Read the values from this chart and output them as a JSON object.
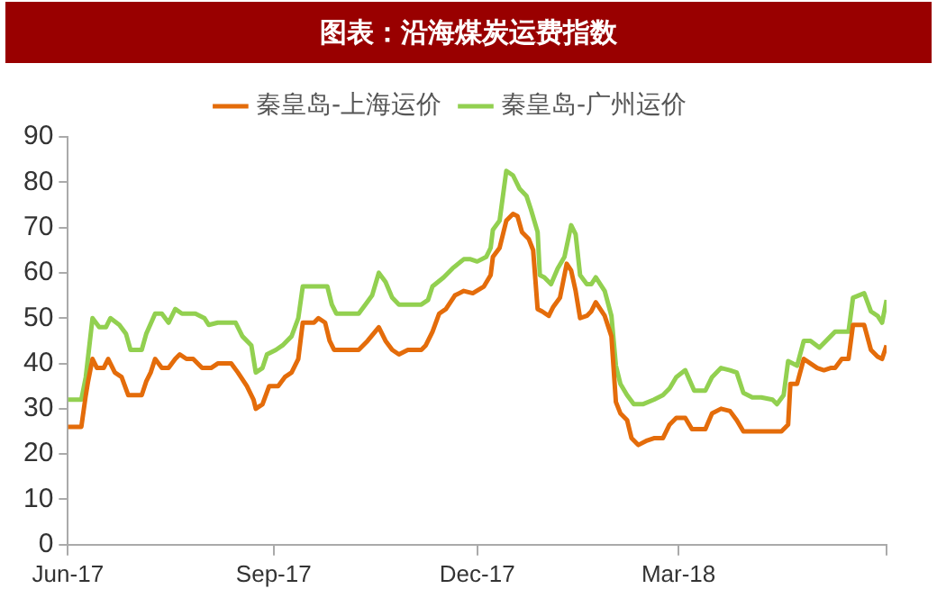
{
  "chart_data": {
    "type": "line",
    "title": "图表：沿海煤炭运费指数",
    "legend": "top",
    "grid": false,
    "marker": "none",
    "line_style": "solid",
    "xlim": [
      "2017-06-01",
      "2018-06-02"
    ],
    "xticks": [
      {
        "value": "2017-06-01",
        "label": "Jun-17"
      },
      {
        "value": "2017-09-01",
        "label": "Sep-17"
      },
      {
        "value": "2017-12-01",
        "label": "Dec-17"
      },
      {
        "value": "2018-03-01",
        "label": "Mar-18"
      },
      {
        "value": "2018-06-02",
        "label": null
      }
    ],
    "ylim": [
      0,
      90
    ],
    "yticks": [
      0,
      10,
      20,
      30,
      40,
      50,
      60,
      70,
      80,
      90
    ],
    "series": [
      {
        "name": "秦皇岛-上海运价",
        "color": "#e46c0a",
        "x": [
          "2017-06-01",
          "2017-06-07",
          "2017-06-09",
          "2017-06-10",
          "2017-06-12",
          "2017-06-14",
          "2017-06-17",
          "2017-06-19",
          "2017-06-22",
          "2017-06-25",
          "2017-06-28",
          "2017-07-04",
          "2017-07-06",
          "2017-07-08",
          "2017-07-10",
          "2017-07-13",
          "2017-07-16",
          "2017-07-19",
          "2017-07-21",
          "2017-07-24",
          "2017-07-27",
          "2017-07-31",
          "2017-08-04",
          "2017-08-07",
          "2017-08-13",
          "2017-08-16",
          "2017-08-20",
          "2017-08-23",
          "2017-08-24",
          "2017-08-27",
          "2017-08-30",
          "2017-09-03",
          "2017-09-06",
          "2017-09-09",
          "2017-09-12",
          "2017-09-14",
          "2017-09-19",
          "2017-09-21",
          "2017-09-24",
          "2017-09-26",
          "2017-09-28",
          "2017-10-09",
          "2017-10-13",
          "2017-10-18",
          "2017-10-21",
          "2017-10-24",
          "2017-10-27",
          "2017-10-31",
          "2017-11-06",
          "2017-11-08",
          "2017-11-11",
          "2017-11-14",
          "2017-11-17",
          "2017-11-21",
          "2017-11-25",
          "2017-11-29",
          "2017-12-04",
          "2017-12-07",
          "2017-12-08",
          "2017-12-11",
          "2017-12-14",
          "2017-12-17",
          "2017-12-19",
          "2017-12-21",
          "2017-12-24",
          "2017-12-26",
          "2017-12-28",
          "2017-12-30",
          "2018-01-02",
          "2018-01-04",
          "2018-01-07",
          "2018-01-10",
          "2018-01-12",
          "2018-01-14",
          "2018-01-16",
          "2018-01-19",
          "2018-01-21",
          "2018-01-23",
          "2018-01-27",
          "2018-01-30",
          "2018-02-01",
          "2018-02-03",
          "2018-02-06",
          "2018-02-08",
          "2018-02-11",
          "2018-02-15",
          "2018-02-18",
          "2018-02-22",
          "2018-02-25",
          "2018-02-28",
          "2018-03-04",
          "2018-03-07",
          "2018-03-13",
          "2018-03-16",
          "2018-03-20",
          "2018-03-24",
          "2018-03-27",
          "2018-03-30",
          "2018-04-16",
          "2018-04-19",
          "2018-04-20",
          "2018-04-23",
          "2018-04-26",
          "2018-04-29",
          "2018-05-02",
          "2018-05-05",
          "2018-05-08",
          "2018-05-10",
          "2018-05-13",
          "2018-05-16",
          "2018-05-18",
          "2018-05-23",
          "2018-05-26",
          "2018-05-29",
          "2018-05-31",
          "2018-06-01",
          "2018-06-02"
        ],
        "values": [
          26,
          26,
          33,
          36,
          41,
          39,
          39,
          41,
          38,
          37,
          33,
          33,
          36,
          38,
          41,
          39,
          39,
          41,
          42,
          41,
          41,
          39,
          39,
          40,
          40,
          38,
          35,
          32,
          30,
          31,
          35,
          35,
          37,
          38,
          41,
          49,
          49,
          50,
          49,
          45,
          43,
          43,
          45,
          48,
          45,
          43,
          42,
          43,
          43,
          44,
          47,
          51,
          52,
          55,
          56,
          55.5,
          57,
          59.5,
          63.5,
          65.5,
          71.5,
          73,
          72.5,
          69,
          67.5,
          65,
          52,
          51.5,
          50.5,
          52.5,
          54.5,
          62,
          60.5,
          56,
          50,
          50.5,
          51.5,
          53.5,
          50.5,
          46,
          31.5,
          29,
          27.5,
          23.5,
          22,
          23,
          23.5,
          23.5,
          26.5,
          28,
          28,
          25.5,
          25.5,
          29,
          30,
          29.5,
          27.5,
          25,
          25,
          26.5,
          35.5,
          35.5,
          41,
          40,
          39,
          38.5,
          39,
          39,
          41,
          41,
          48.5,
          48.5,
          43,
          41.5,
          41,
          42.5,
          44
        ]
      },
      {
        "name": "秦皇岛-广州运价",
        "color": "#92d050",
        "x": [
          "2017-06-01",
          "2017-06-07",
          "2017-06-09",
          "2017-06-12",
          "2017-06-15",
          "2017-06-18",
          "2017-06-20",
          "2017-06-24",
          "2017-06-27",
          "2017-06-29",
          "2017-07-04",
          "2017-07-06",
          "2017-07-10",
          "2017-07-13",
          "2017-07-16",
          "2017-07-19",
          "2017-07-22",
          "2017-07-28",
          "2017-08-01",
          "2017-08-03",
          "2017-08-07",
          "2017-08-15",
          "2017-08-18",
          "2017-08-22",
          "2017-08-24",
          "2017-08-27",
          "2017-08-29",
          "2017-09-02",
          "2017-09-05",
          "2017-09-09",
          "2017-09-12",
          "2017-09-14",
          "2017-09-25",
          "2017-09-27",
          "2017-09-29",
          "2017-10-09",
          "2017-10-12",
          "2017-10-15",
          "2017-10-18",
          "2017-10-21",
          "2017-10-24",
          "2017-10-27",
          "2017-11-06",
          "2017-11-09",
          "2017-11-11",
          "2017-11-16",
          "2017-11-20",
          "2017-11-25",
          "2017-11-28",
          "2017-12-01",
          "2017-12-05",
          "2017-12-07",
          "2017-12-08",
          "2017-12-11",
          "2017-12-14",
          "2017-12-17",
          "2017-12-20",
          "2017-12-23",
          "2017-12-25",
          "2017-12-28",
          "2017-12-29",
          "2017-12-31",
          "2018-01-03",
          "2018-01-06",
          "2018-01-09",
          "2018-01-12",
          "2018-01-14",
          "2018-01-16",
          "2018-01-19",
          "2018-01-21",
          "2018-01-23",
          "2018-01-27",
          "2018-01-30",
          "2018-02-01",
          "2018-02-03",
          "2018-02-06",
          "2018-02-09",
          "2018-02-13",
          "2018-02-18",
          "2018-02-22",
          "2018-02-25",
          "2018-02-28",
          "2018-03-04",
          "2018-03-08",
          "2018-03-13",
          "2018-03-16",
          "2018-03-20",
          "2018-03-24",
          "2018-03-27",
          "2018-03-30",
          "2018-04-03",
          "2018-04-07",
          "2018-04-12",
          "2018-04-14",
          "2018-04-17",
          "2018-04-19",
          "2018-04-23",
          "2018-04-26",
          "2018-04-29",
          "2018-05-03",
          "2018-05-08",
          "2018-05-10",
          "2018-05-15",
          "2018-05-16",
          "2018-05-18",
          "2018-05-23",
          "2018-05-26",
          "2018-05-29",
          "2018-05-31",
          "2018-06-02"
        ],
        "values": [
          32,
          32,
          37,
          50,
          48,
          48,
          50,
          48.5,
          46.5,
          43,
          43,
          46.5,
          51,
          51,
          49,
          52,
          51,
          51,
          50,
          48.5,
          49,
          49,
          46,
          44,
          38,
          39,
          42,
          43,
          44,
          46,
          50,
          57,
          57,
          53,
          51,
          51,
          53,
          55,
          60,
          58,
          54.5,
          53,
          53,
          54,
          57,
          59,
          61,
          63,
          63,
          62.5,
          63.5,
          65.5,
          69.5,
          71.5,
          82.5,
          81.5,
          78.5,
          77,
          74,
          69,
          59.5,
          59,
          57.5,
          61,
          63.5,
          70.5,
          68.5,
          59.5,
          57.5,
          57.5,
          59,
          56,
          50.5,
          39.5,
          35.5,
          33,
          31,
          31,
          32,
          33,
          34.5,
          37,
          38.5,
          34,
          34,
          37,
          39,
          38.5,
          38,
          33.5,
          32.5,
          32.5,
          32,
          31,
          33,
          40.5,
          39.5,
          45,
          45,
          43.5,
          46,
          47,
          47,
          47,
          54.5,
          55.5,
          51.5,
          50.5,
          49,
          54
        ]
      }
    ]
  }
}
